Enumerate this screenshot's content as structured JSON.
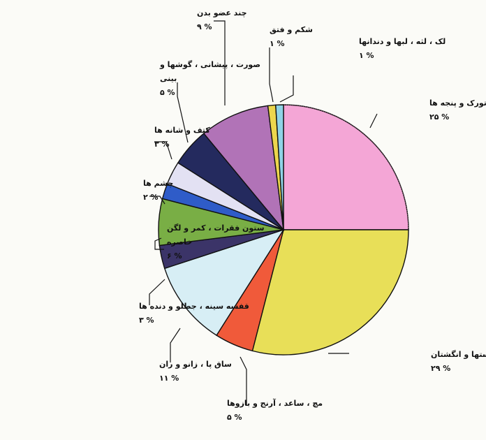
{
  "chart_data": {
    "type": "pie",
    "title": "",
    "slices": [
      {
        "label": "پا ، تورک و پنجه ها",
        "value_text": "% ۲۵",
        "value": 25,
        "color": "#f4a6d6"
      },
      {
        "label": "دستها و انگشتان",
        "value_text": "% ۲۹",
        "value": 29,
        "color": "#e8df58"
      },
      {
        "label": "مچ ، ساعد ، آرنج و بازوها",
        "value_text": "% ۵",
        "value": 5,
        "color": "#f05a3a"
      },
      {
        "label": "ساق پا ، زانو و ران",
        "value_text": "% ۱۱",
        "value": 11,
        "color": "#d7eef5"
      },
      {
        "label": "قفسه سینه ، جطلو و دنده ها",
        "value_text": "% ۳",
        "value": 3,
        "color": "#3b3468"
      },
      {
        "label": "ستون فقرات ، کمر و لگن خاصره",
        "value_text": "% ۶",
        "value": 6,
        "color": "#79ae45"
      },
      {
        "label": "چشم ها",
        "value_text": "% ۲",
        "value": 2,
        "color": "#2f5cc8"
      },
      {
        "label": "کتف و شانه ها",
        "value_text": "% ۳",
        "value": 3,
        "color": "#e3e1f3"
      },
      {
        "label": "صورت ، پیشانی ، گوشها و بینی",
        "value_text": "% ۵",
        "value": 5,
        "color": "#242a5e"
      },
      {
        "label": "چند عضو بدن",
        "value_text": "% ۹",
        "value": 9,
        "color": "#b173b7"
      },
      {
        "label": "شکم و فتق",
        "value_text": "% ۱",
        "value": 1,
        "color": "#ecd64d"
      },
      {
        "label": "لک ، لثه ، لبها و دندانها",
        "value_text": "% ۱",
        "value": 1,
        "color": "#8fd3e6"
      }
    ]
  }
}
